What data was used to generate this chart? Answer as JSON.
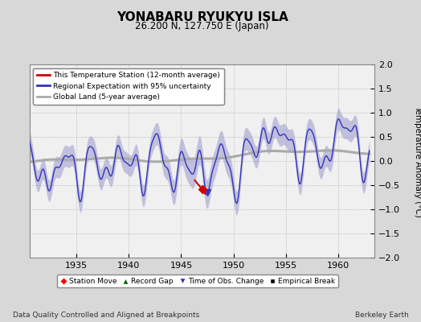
{
  "title": "YONABARU RYUKYU ISLA",
  "subtitle": "26.200 N, 127.750 E (Japan)",
  "ylabel": "Temperature Anomaly (°C)",
  "xlabel_note": "Data Quality Controlled and Aligned at Breakpoints",
  "credit": "Berkeley Earth",
  "xlim": [
    1930.5,
    1963.5
  ],
  "ylim": [
    -2,
    2
  ],
  "yticks": [
    -2,
    -1.5,
    -1,
    -0.5,
    0,
    0.5,
    1,
    1.5,
    2
  ],
  "xticks": [
    1935,
    1940,
    1945,
    1950,
    1955,
    1960
  ],
  "bg_color": "#d8d8d8",
  "plot_bg_color": "#f0f0f0",
  "regional_color": "#3333bb",
  "regional_fill_color": "#9999cc",
  "station_color": "#cc0000",
  "global_color": "#aaaaaa",
  "obs_marker_color": "#3333bb",
  "obs_marker_x": 1947.5,
  "obs_marker_y": -0.65,
  "station_marker_color": "#cc0000",
  "station_marker_x": 1947.0,
  "station_marker_y": -0.58
}
